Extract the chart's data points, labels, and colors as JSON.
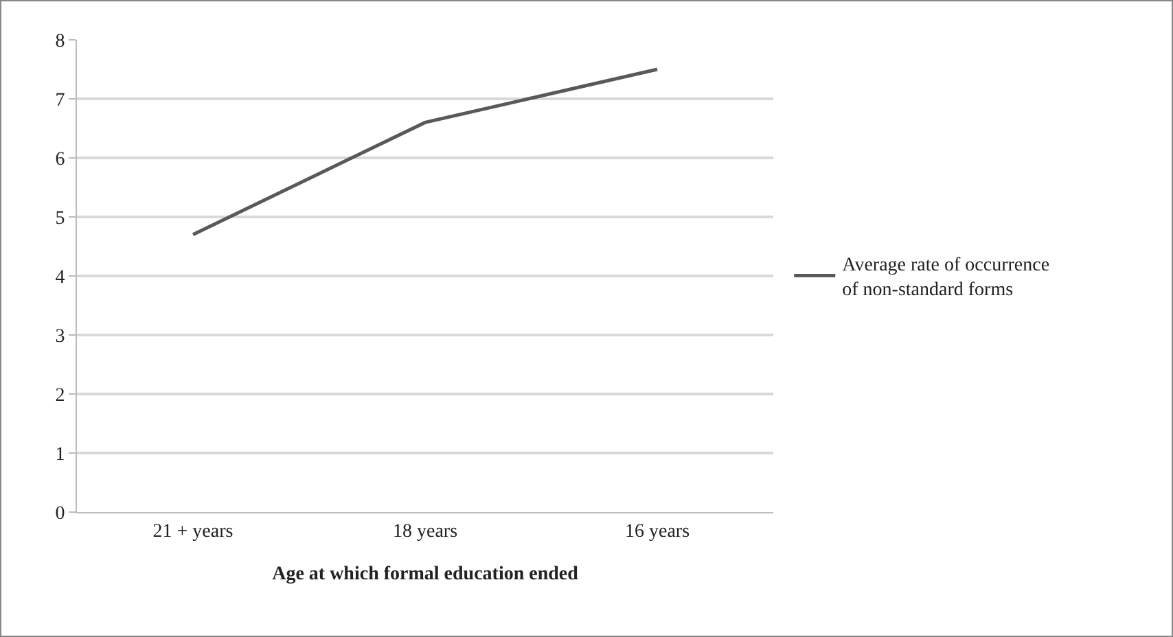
{
  "chart_data": {
    "type": "line",
    "xlabel": "Age at which formal education ended",
    "categories": [
      "21 + years",
      "18 years",
      "16 years"
    ],
    "series": [
      {
        "name": "Average rate of occurrence of non-standard forms",
        "color": "#595959",
        "values": [
          4.7,
          6.6,
          7.5
        ]
      }
    ],
    "ylim": [
      0,
      8
    ],
    "yticks": [
      0,
      1,
      2,
      3,
      4,
      5,
      6,
      7,
      8
    ],
    "grid": "y",
    "legend": "right",
    "marker": "none",
    "line_style": "solid"
  }
}
